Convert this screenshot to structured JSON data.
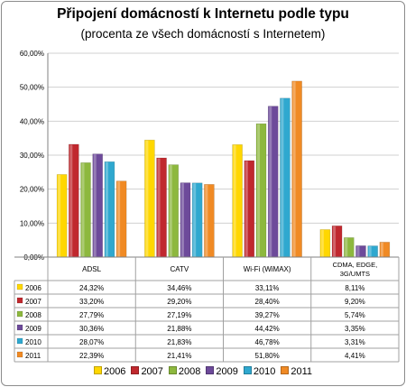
{
  "chart_data": {
    "type": "bar",
    "title": "Připojení domácností k Internetu podle typu",
    "subtitle": "(procenta ze všech domácností s Internetem)",
    "categories": [
      "ADSL",
      "CATV",
      "Wi-Fi (WiMAX)",
      "CDMA, EDGE, 3G/UMTS"
    ],
    "ylim": [
      0,
      60
    ],
    "yticks": [
      "0,00%",
      "10,00%",
      "20,00%",
      "30,00%",
      "40,00%",
      "50,00%",
      "60,00%"
    ],
    "grid": true,
    "legend_position": "bottom",
    "series": [
      {
        "name": "2006",
        "color": "#ffd700",
        "values": [
          24.32,
          34.46,
          33.11,
          8.11
        ],
        "labels": [
          "24,32%",
          "34,46%",
          "33,11%",
          "8,11%"
        ]
      },
      {
        "name": "2007",
        "color": "#c0282e",
        "values": [
          33.2,
          29.2,
          28.4,
          9.2
        ],
        "labels": [
          "33,20%",
          "29,20%",
          "28,40%",
          "9,20%"
        ]
      },
      {
        "name": "2008",
        "color": "#8db83e",
        "values": [
          27.79,
          27.19,
          39.27,
          5.74
        ],
        "labels": [
          "27,79%",
          "27,19%",
          "39,27%",
          "5,74%"
        ]
      },
      {
        "name": "2009",
        "color": "#6d4a9a",
        "values": [
          30.36,
          21.88,
          44.42,
          3.35
        ],
        "labels": [
          "30,36%",
          "21,88%",
          "44,42%",
          "3,35%"
        ]
      },
      {
        "name": "2010",
        "color": "#2fa8cf",
        "values": [
          28.07,
          21.83,
          46.78,
          3.31
        ],
        "labels": [
          "28,07%",
          "21,83%",
          "46,78%",
          "3,31%"
        ]
      },
      {
        "name": "2011",
        "color": "#f08a24",
        "values": [
          22.39,
          21.41,
          51.8,
          4.41
        ],
        "labels": [
          "22,39%",
          "21,41%",
          "51,80%",
          "4,41%"
        ]
      }
    ]
  }
}
